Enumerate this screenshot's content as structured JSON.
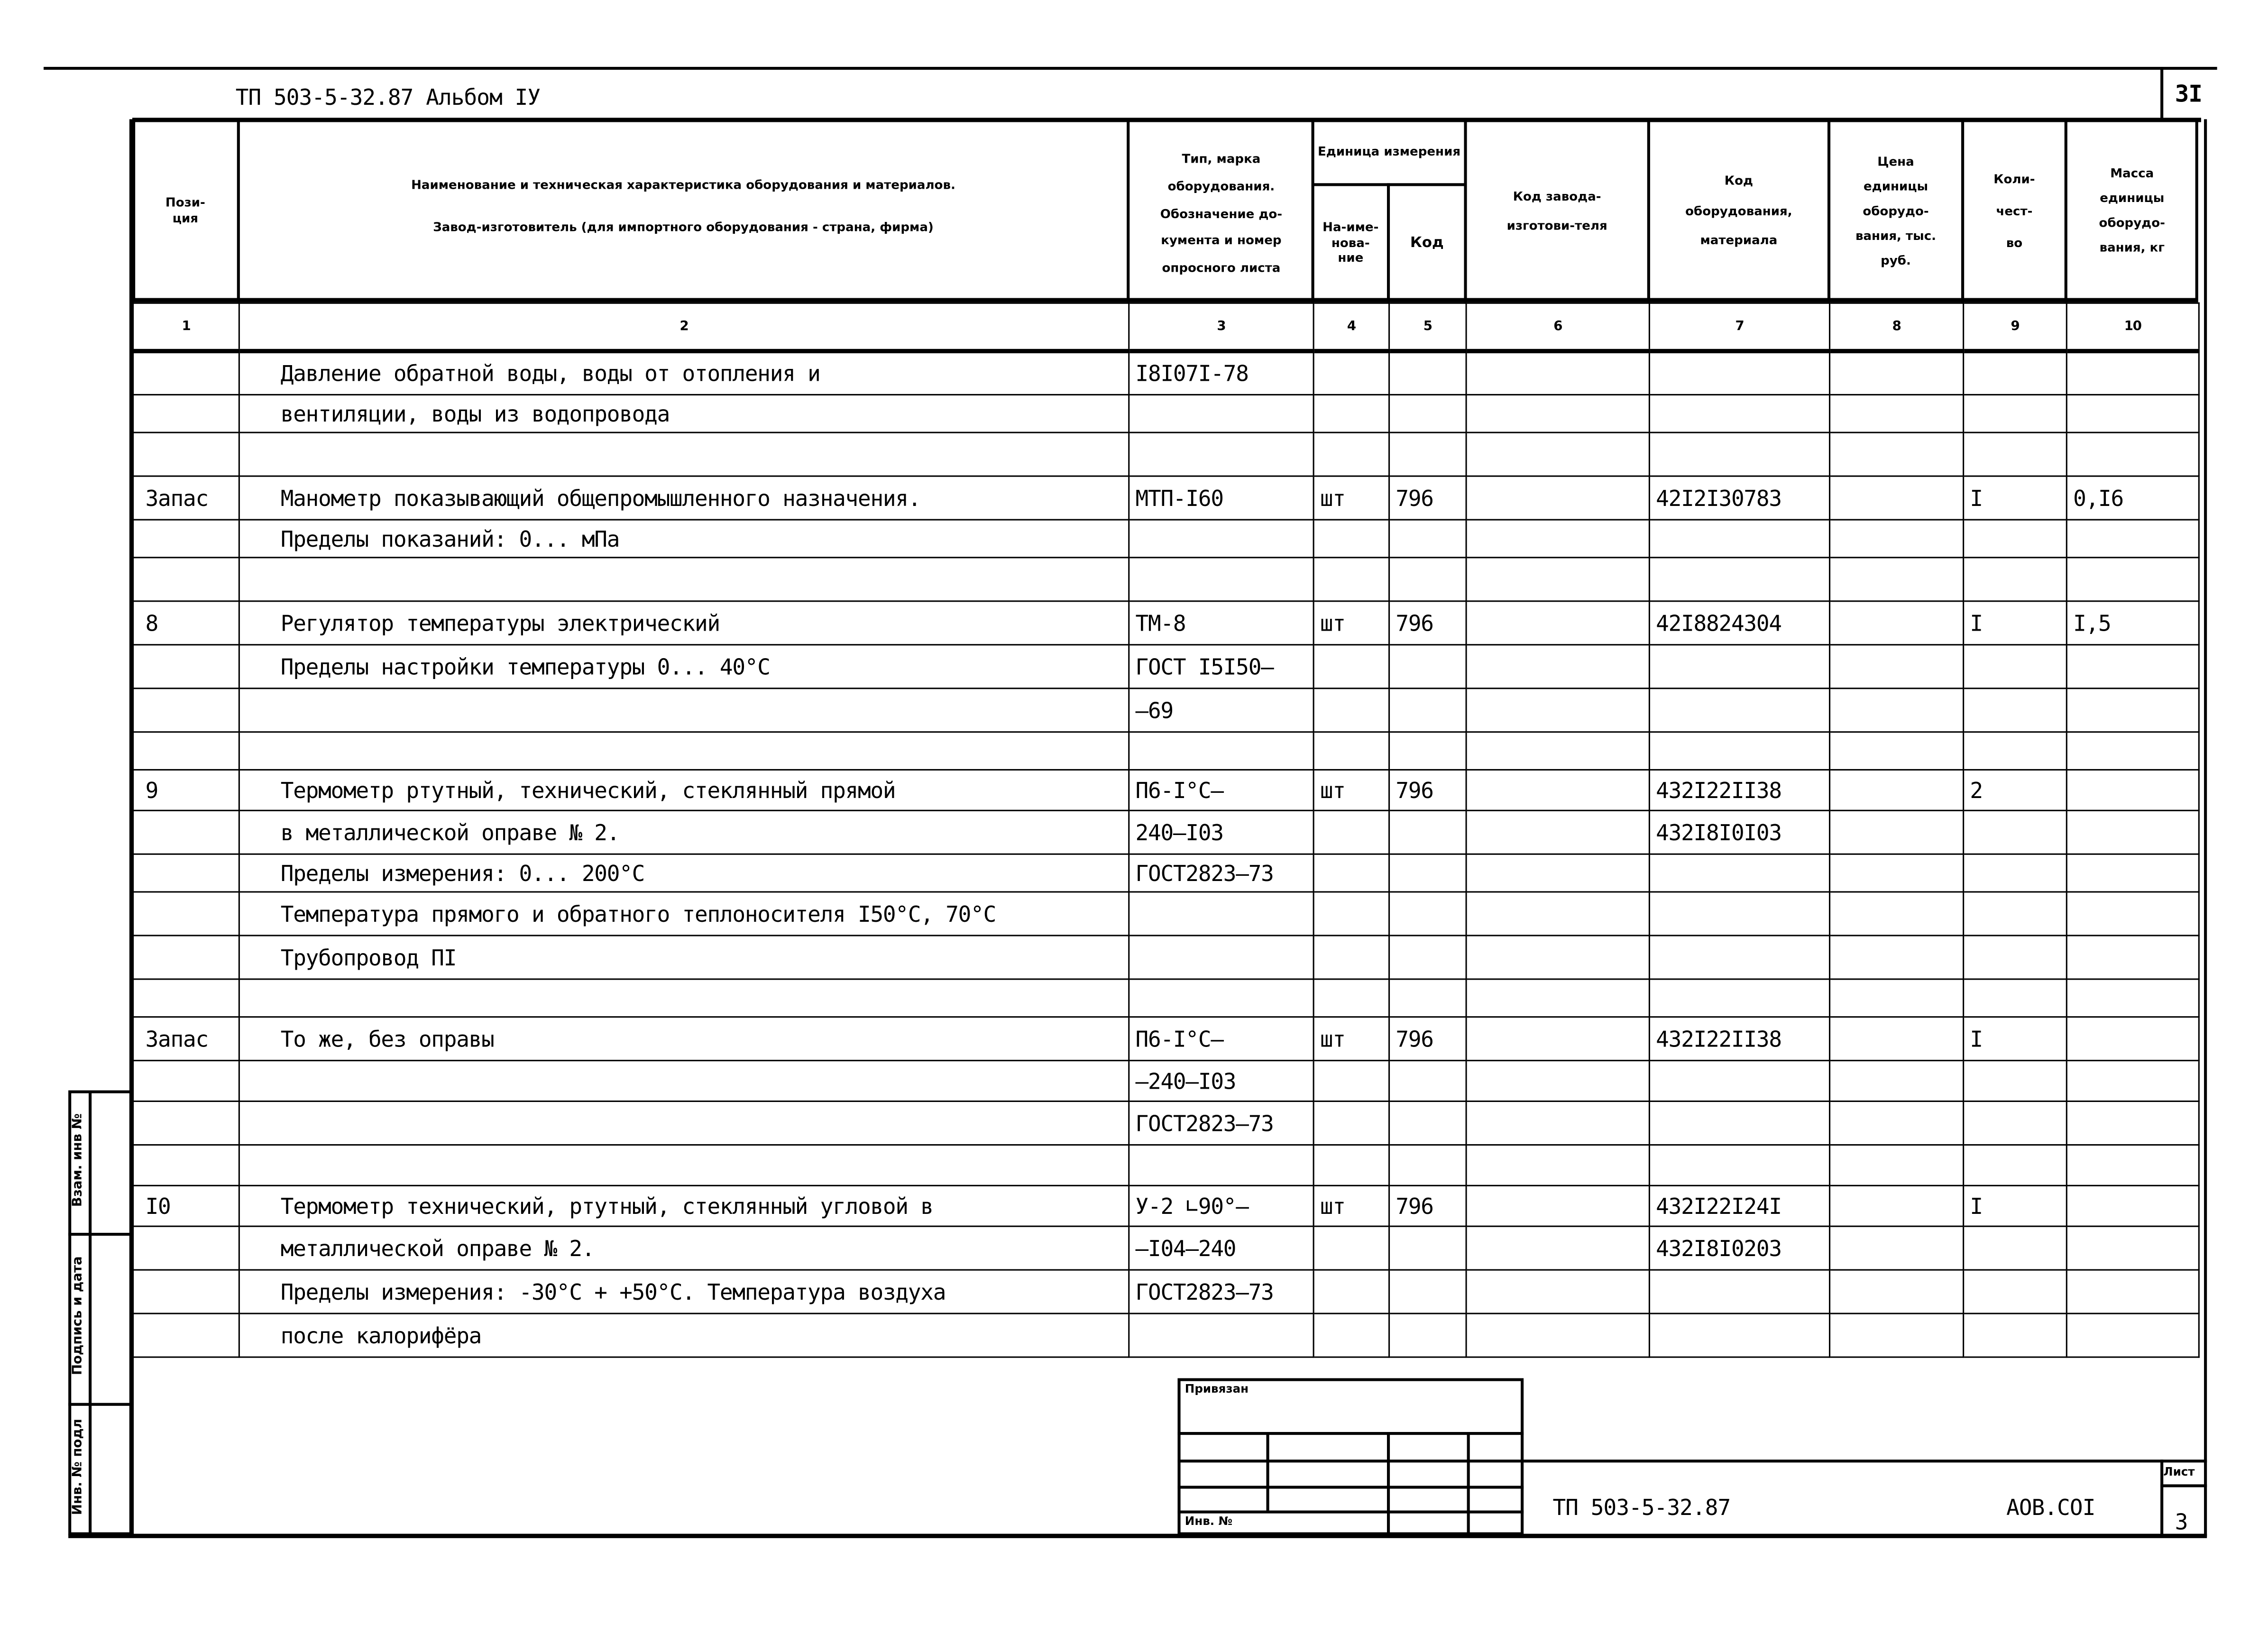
{
  "header": {
    "doc_title": "ТП 503-5-32.87   Альбом IУ",
    "sheet_number": "3I"
  },
  "columns": {
    "pos": "Пози-\nция",
    "name_1": "Наименование и техническая характеристика оборудования и материалов.",
    "name_2": "Завод-изготовитель (для импортного оборудования - страна, фирма)",
    "type": "Тип, марка оборудования. Обозначение до-кумента и номер опросного листа",
    "unit": "Единица измерения",
    "unit_name": "На-име-нова-ние",
    "unit_code": "Код",
    "factory_code": "Код завода-изготови-теля",
    "equipment_code": "Код оборудования, материала",
    "price": "Цена единицы оборудо-вания, тыс. руб.",
    "qty": "Коли-чест-во",
    "mass": "Масса единицы оборудо-вания, кг"
  },
  "column_numbers": [
    "1",
    "2",
    "3",
    "4",
    "5",
    "6",
    "7",
    "8",
    "9",
    "10"
  ],
  "rows": [
    {
      "pos": "",
      "name": "Давление обратной воды, воды от отопления и",
      "type": "I8I07I-78",
      "unit": "",
      "code": "",
      "factory": "",
      "eq": "",
      "price": "",
      "qty": "",
      "mass": ""
    },
    {
      "pos": "",
      "name": "вентиляции, воды из водопровода",
      "type": "",
      "unit": "",
      "code": "",
      "factory": "",
      "eq": "",
      "price": "",
      "qty": "",
      "mass": ""
    },
    {
      "pos": "",
      "name": "",
      "type": "",
      "unit": "",
      "code": "",
      "factory": "",
      "eq": "",
      "price": "",
      "qty": "",
      "mass": ""
    },
    {
      "pos": "Запас",
      "name": "Манометр показывающий общепромышленного назначения.",
      "type": "МТП-I60",
      "unit": "шт",
      "code": "796",
      "factory": "",
      "eq": "42I2I30783",
      "price": "",
      "qty": "I",
      "mass": "0,I6"
    },
    {
      "pos": "",
      "name": "Пределы показаний: 0...      мПа",
      "type": "",
      "unit": "",
      "code": "",
      "factory": "",
      "eq": "",
      "price": "",
      "qty": "",
      "mass": ""
    },
    {
      "pos": "",
      "name": "",
      "type": "",
      "unit": "",
      "code": "",
      "factory": "",
      "eq": "",
      "price": "",
      "qty": "",
      "mass": ""
    },
    {
      "pos": "8",
      "name": "Регулятор температуры электрический",
      "type": "ТМ-8",
      "unit": "шт",
      "code": "796",
      "factory": "",
      "eq": "42I8824304",
      "price": "",
      "qty": "I",
      "mass": "I,5"
    },
    {
      "pos": "",
      "name": "Пределы настройки температуры 0...    40°С",
      "type": "ГОСТ I5I50–",
      "unit": "",
      "code": "",
      "factory": "",
      "eq": "",
      "price": "",
      "qty": "",
      "mass": ""
    },
    {
      "pos": "",
      "name": "",
      "type": "–69",
      "unit": "",
      "code": "",
      "factory": "",
      "eq": "",
      "price": "",
      "qty": "",
      "mass": ""
    },
    {
      "pos": "",
      "name": "",
      "type": "",
      "unit": "",
      "code": "",
      "factory": "",
      "eq": "",
      "price": "",
      "qty": "",
      "mass": ""
    },
    {
      "pos": "9",
      "name": "Термометр ртутный, технический, стеклянный прямой",
      "type": "П6-I°С–",
      "unit": "шт",
      "code": "796",
      "factory": "",
      "eq": "432I22II38",
      "price": "",
      "qty": "2",
      "mass": ""
    },
    {
      "pos": "",
      "name": "в металлической оправе № 2.",
      "type": "240–I03",
      "unit": "",
      "code": "",
      "factory": "",
      "eq": "432I8I0I03",
      "price": "",
      "qty": "",
      "mass": ""
    },
    {
      "pos": "",
      "name": "Пределы измерения: 0... 200°С",
      "type": "ГОСТ2823–73",
      "unit": "",
      "code": "",
      "factory": "",
      "eq": "",
      "price": "",
      "qty": "",
      "mass": ""
    },
    {
      "pos": "",
      "name": "Температура прямого и обратного теплоносителя I50°С, 70°С",
      "type": "",
      "unit": "",
      "code": "",
      "factory": "",
      "eq": "",
      "price": "",
      "qty": "",
      "mass": ""
    },
    {
      "pos": "",
      "name": "Трубопровод ПI",
      "type": "",
      "unit": "",
      "code": "",
      "factory": "",
      "eq": "",
      "price": "",
      "qty": "",
      "mass": ""
    },
    {
      "pos": "",
      "name": "",
      "type": "",
      "unit": "",
      "code": "",
      "factory": "",
      "eq": "",
      "price": "",
      "qty": "",
      "mass": ""
    },
    {
      "pos": "Запас",
      "name": "То же, без оправы",
      "type": "П6-I°С–",
      "unit": "шт",
      "code": "796",
      "factory": "",
      "eq": "432I22II38",
      "price": "",
      "qty": "I",
      "mass": ""
    },
    {
      "pos": "",
      "name": "",
      "type": "–240–I03",
      "unit": "",
      "code": "",
      "factory": "",
      "eq": "",
      "price": "",
      "qty": "",
      "mass": ""
    },
    {
      "pos": "",
      "name": "",
      "type": "ГОСТ2823–73",
      "unit": "",
      "code": "",
      "factory": "",
      "eq": "",
      "price": "",
      "qty": "",
      "mass": ""
    },
    {
      "pos": "",
      "name": "",
      "type": "",
      "unit": "",
      "code": "",
      "factory": "",
      "eq": "",
      "price": "",
      "qty": "",
      "mass": ""
    },
    {
      "pos": "I0",
      "name": "Термометр технический, ртутный, стеклянный угловой в",
      "type": "У-2 ∟90°–",
      "unit": "шт",
      "code": "796",
      "factory": "",
      "eq": "432I22I24I",
      "price": "",
      "qty": "I",
      "mass": ""
    },
    {
      "pos": "",
      "name": "металлической оправе № 2.",
      "type": "–I04–240",
      "unit": "",
      "code": "",
      "factory": "",
      "eq": "432I8I0203",
      "price": "",
      "qty": "",
      "mass": ""
    },
    {
      "pos": "",
      "name": "Пределы измерения: -30°С + +50°С. Температура воздуха",
      "type": "ГОСТ2823–73",
      "unit": "",
      "code": "",
      "factory": "",
      "eq": "",
      "price": "",
      "qty": "",
      "mass": ""
    },
    {
      "pos": "",
      "name": "после калорифёра",
      "type": "",
      "unit": "",
      "code": "",
      "factory": "",
      "eq": "",
      "price": "",
      "qty": "",
      "mass": ""
    }
  ],
  "side_strip": {
    "replace_inv": "Взам. инв №",
    "sign_date": "Подпись и дата",
    "inv_orig": "Инв. № подл"
  },
  "stamp": {
    "linked": "Привязан",
    "inv_no": "Инв. №"
  },
  "title_block": {
    "doc_code": "ТП 503-5-32.87",
    "set_code": "АОВ.СОI",
    "sheet_label": "Лист",
    "sheet": "3"
  }
}
